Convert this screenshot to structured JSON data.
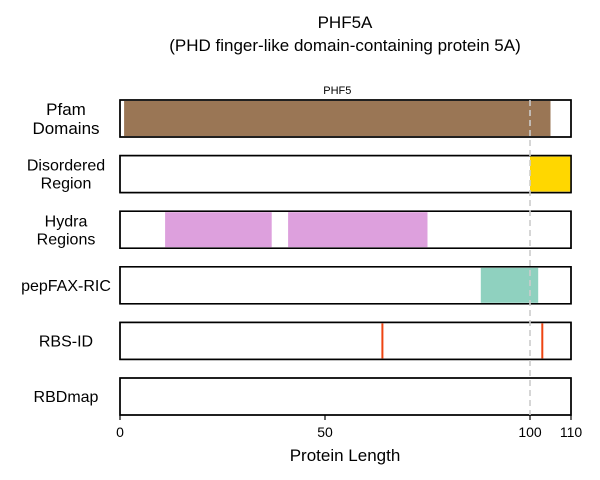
{
  "chart_data": {
    "type": "bar",
    "title": "PHF5A",
    "subtitle": "(PHD finger-like domain-containing protein 5A)",
    "xlabel": "Protein Length",
    "xlim": [
      0,
      110
    ],
    "xticks": [
      0,
      50,
      100,
      110
    ],
    "reference_line": {
      "x": 100,
      "style": "dashed",
      "color": "#cccccc"
    },
    "tracks": [
      {
        "label": [
          "Pfam",
          "Domains"
        ],
        "segments": [
          {
            "start": 1,
            "end": 105,
            "color": "#9a7655",
            "label": "PHF5"
          }
        ]
      },
      {
        "label": [
          "Disordered",
          "Region"
        ],
        "segments": [
          {
            "start": 100,
            "end": 110,
            "color": "#ffd700"
          }
        ]
      },
      {
        "label": [
          "Hydra",
          "Regions"
        ],
        "segments": [
          {
            "start": 11,
            "end": 37,
            "color": "#dda0dd"
          },
          {
            "start": 41,
            "end": 75,
            "color": "#dda0dd"
          }
        ]
      },
      {
        "label": [
          "pepFAX-RIC"
        ],
        "segments": [
          {
            "start": 88,
            "end": 102,
            "color": "#8fd1bf"
          }
        ]
      },
      {
        "label": [
          "RBS-ID"
        ],
        "markers": [
          {
            "x": 64,
            "color": "#ee4411"
          },
          {
            "x": 103,
            "color": "#ee4411"
          }
        ]
      },
      {
        "label": [
          "RBDmap"
        ],
        "segments": []
      }
    ]
  }
}
